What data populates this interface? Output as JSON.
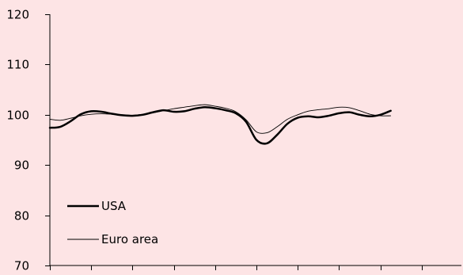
{
  "chart_data": {
    "type": "line",
    "title": "",
    "xlabel": "",
    "ylabel": "",
    "ylim": [
      70,
      120
    ],
    "yticks": [
      "70",
      "80",
      "90",
      "100",
      "110",
      "120"
    ],
    "x": [
      0,
      0.25,
      0.5,
      0.75,
      1,
      1.25,
      1.5,
      1.75,
      2,
      2.25,
      2.5,
      2.75,
      3,
      3.25,
      3.5,
      3.75,
      4,
      4.25,
      4.5,
      4.75,
      5,
      5.25,
      5.5,
      5.75,
      6,
      6.25,
      6.5,
      6.75,
      7,
      7.25,
      7.5,
      7.75,
      8,
      8.25,
      8.5,
      8.75,
      9
    ],
    "x_ticks_count": 10,
    "grid": false,
    "legend_position": "bottom-left",
    "series": [
      {
        "name": "USA",
        "color": "#000000",
        "values": [
          97.4,
          97.6,
          98.7,
          100.1,
          100.7,
          100.6,
          100.2,
          99.9,
          99.8,
          100.0,
          100.5,
          100.9,
          100.6,
          100.7,
          101.2,
          101.5,
          101.3,
          100.9,
          100.3,
          98.6,
          95.0,
          94.3,
          96.0,
          98.2,
          99.4,
          99.7,
          99.5,
          99.8,
          100.3,
          100.5,
          100.0,
          99.7,
          100.0,
          100.8,
          null,
          null,
          null
        ]
      },
      {
        "name": "Euro area",
        "color": "#000000",
        "values": [
          99.1,
          98.9,
          99.3,
          99.8,
          100.1,
          100.2,
          100.1,
          100.0,
          99.9,
          100.1,
          100.4,
          100.8,
          101.2,
          101.5,
          101.8,
          102.0,
          101.7,
          101.3,
          100.6,
          99.0,
          96.6,
          96.4,
          97.6,
          99.1,
          100.0,
          100.7,
          101.0,
          101.2,
          101.5,
          101.4,
          100.8,
          100.1,
          99.8,
          99.8,
          null,
          null,
          null
        ]
      }
    ]
  }
}
